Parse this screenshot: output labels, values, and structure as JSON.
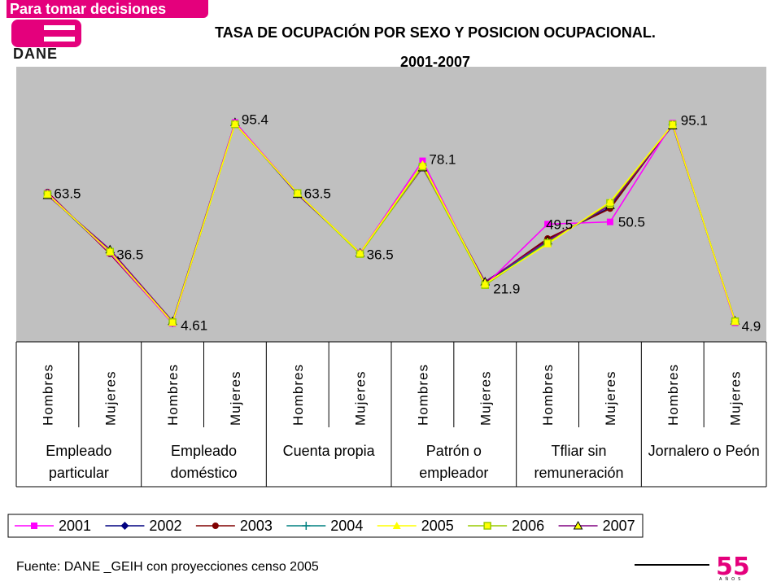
{
  "logo": {
    "tagline": "Para tomar decisiones",
    "name": "DANE",
    "brand_color": "#e4007c"
  },
  "title_line1": "TASA DE OCUPACIÓN POR SEXO Y POSICION OCUPACIONAL.",
  "title_line2": "2001-2007",
  "source": "Fuente: DANE _GEIH con proyecciones censo 2005",
  "anniversary": {
    "number": "55",
    "word": "AÑOS"
  },
  "chart_data": {
    "type": "line",
    "ylim": [
      0,
      100
    ],
    "grid": false,
    "plot_background": "#c0c0c0",
    "legend_position": "bottom",
    "categories": [
      "Hombres",
      "Mujeres",
      "Hombres",
      "Mujeres",
      "Hombres",
      "Mujeres",
      "Hombres",
      "Mujeres",
      "Hombres",
      "Mujeres",
      "Hombres",
      "Mujeres"
    ],
    "groups": [
      "Empleado particular",
      "Empleado doméstico",
      "Cuenta propia",
      "Patrón o empleador",
      "Tfliar sin remuneración",
      "Jornalero o Peón"
    ],
    "data_labels": [
      "63.5",
      "36.5",
      "4.61",
      "95.4",
      "63.5",
      "36.5",
      "78.1",
      "21.9",
      "49.5",
      "50.5",
      "95.1",
      "4.9"
    ],
    "series": [
      {
        "name": "2001",
        "color": "#ff00ff",
        "marker": "square",
        "values": [
          63.5,
          36.5,
          4.61,
          95.4,
          63.5,
          36.5,
          78.1,
          21.9,
          49.5,
          50.5,
          95.1,
          4.9
        ]
      },
      {
        "name": "2002",
        "color": "#000080",
        "marker": "diamond",
        "values": [
          63.0,
          36.5,
          4.8,
          95.0,
          63.0,
          36.5,
          76.5,
          23.0,
          42.5,
          57.0,
          94.5,
          5.3
        ]
      },
      {
        "name": "2003",
        "color": "#800000",
        "marker": "circle",
        "values": [
          64.0,
          36.0,
          4.9,
          95.1,
          63.5,
          36.5,
          76.0,
          23.0,
          43.0,
          56.5,
          94.5,
          5.5
        ]
      },
      {
        "name": "2004",
        "color": "#008080",
        "marker": "plus",
        "values": [
          63.5,
          36.5,
          4.8,
          95.0,
          63.5,
          36.5,
          76.0,
          22.5,
          41.5,
          58.0,
          94.5,
          5.4
        ]
      },
      {
        "name": "2005",
        "color": "#ffff00",
        "marker": "triangle",
        "values": [
          63.0,
          37.0,
          5.0,
          94.8,
          63.5,
          36.5,
          76.5,
          22.5,
          40.5,
          59.5,
          94.5,
          5.5
        ]
      },
      {
        "name": "2006",
        "color": "#99cc00",
        "marker": "square-open",
        "values": [
          63.0,
          37.0,
          5.2,
          94.6,
          63.5,
          36.0,
          75.5,
          22.0,
          41.0,
          59.0,
          94.5,
          5.6
        ]
      },
      {
        "name": "2007",
        "color": "#800080",
        "marker": "triangle-open",
        "values": [
          62.5,
          38.0,
          5.6,
          95.5,
          63.0,
          36.5,
          75.0,
          23.5,
          42.0,
          58.0,
          94.0,
          5.8
        ]
      }
    ]
  }
}
